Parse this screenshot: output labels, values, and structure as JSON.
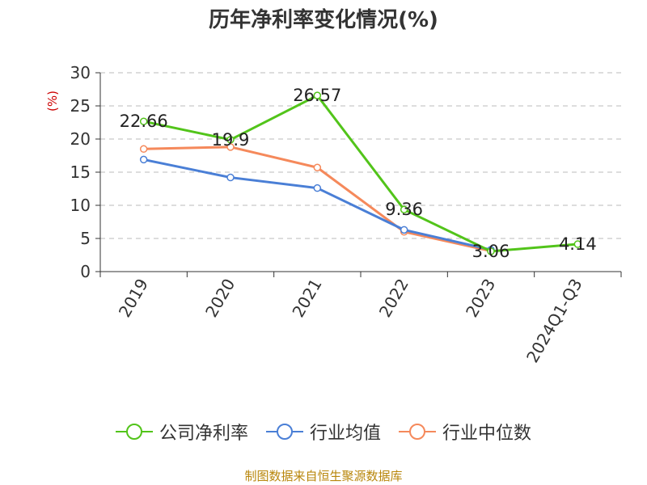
{
  "chart_data": {
    "type": "line",
    "title": "历年净利率变化情况(%)",
    "ylabel": "(%)",
    "xlabel": "",
    "categories": [
      "2019",
      "2020",
      "2021",
      "2022",
      "2023",
      "2024Q1-Q3"
    ],
    "ylim": [
      0,
      30
    ],
    "yticks": [
      0,
      5,
      10,
      15,
      20,
      25,
      30
    ],
    "grid": true,
    "legend_position": "bottom",
    "series": [
      {
        "name": "公司净利率",
        "color": "#52c41a",
        "values": [
          22.66,
          19.9,
          26.57,
          9.36,
          3.06,
          4.14
        ],
        "labels": [
          "22.66",
          "19.9",
          "26.57",
          "9.36",
          "3.06",
          "4.14"
        ]
      },
      {
        "name": "行业均值",
        "color": "#4a7fd6",
        "values": [
          16.9,
          14.2,
          12.6,
          6.3,
          3.3,
          null
        ]
      },
      {
        "name": "行业中位数",
        "color": "#f5895b",
        "values": [
          18.5,
          18.8,
          15.7,
          6.0,
          3.1,
          null
        ]
      }
    ]
  },
  "source": "制图数据来自恒生聚源数据库",
  "colors": {
    "source_text": "#b8860b",
    "ylabel": "#cc0000",
    "axis": "#333333",
    "grid": "#bbbbbb"
  }
}
